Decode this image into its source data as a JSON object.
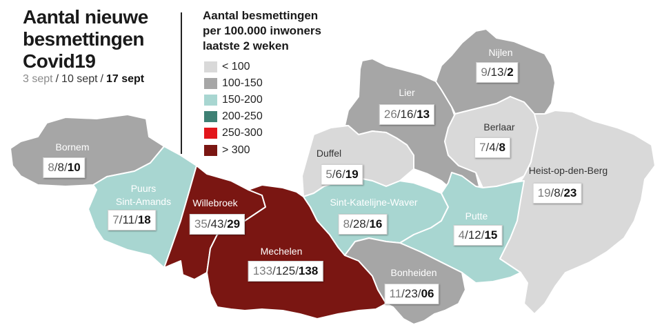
{
  "title": [
    "Aantal nieuwe",
    "besmettingen",
    "Covid19"
  ],
  "dates": [
    "3 sept",
    "10 sept",
    "17 sept"
  ],
  "separator": "/",
  "legend": {
    "title": [
      "Aantal besmettingen",
      "per 100.000 inwoners",
      "laatste 2 weken"
    ],
    "items": [
      {
        "label": "< 100",
        "color": "#d9d9d9"
      },
      {
        "label": "100-150",
        "color": "#a6a6a6"
      },
      {
        "label": "150-200",
        "color": "#a8d6d1"
      },
      {
        "label": "200-250",
        "color": "#3e8074"
      },
      {
        "label": "250-300",
        "color": "#e2161b"
      },
      {
        "label": "> 300",
        "color": "#7a1612"
      }
    ]
  },
  "municipalities": [
    {
      "name_lines": [
        "Bornem"
      ],
      "values": [
        "8",
        "8",
        "10"
      ],
      "fill": "#a6a6a6"
    },
    {
      "name_lines": [
        "Puurs",
        "Sint-Amands"
      ],
      "values": [
        "7",
        "11",
        "18"
      ],
      "fill": "#a8d6d1"
    },
    {
      "name_lines": [
        "Willebroek"
      ],
      "values": [
        "35",
        "43",
        "29"
      ],
      "fill": "#7a1612"
    },
    {
      "name_lines": [
        "Mechelen"
      ],
      "values": [
        "133",
        "125",
        "138"
      ],
      "fill": "#7a1612"
    },
    {
      "name_lines": [
        "Duffel"
      ],
      "values": [
        "5",
        "6",
        "19"
      ],
      "fill": "#d9d9d9"
    },
    {
      "name_lines": [
        "Lier"
      ],
      "values": [
        "26",
        "16",
        "13"
      ],
      "fill": "#a6a6a6"
    },
    {
      "name_lines": [
        "Nijlen"
      ],
      "values": [
        "9",
        "13",
        "2"
      ],
      "fill": "#a6a6a6"
    },
    {
      "name_lines": [
        "Berlaar"
      ],
      "values": [
        "7",
        "4",
        "8"
      ],
      "fill": "#d9d9d9"
    },
    {
      "name_lines": [
        "Heist-op-den-Berg"
      ],
      "values": [
        "19",
        "8",
        "23"
      ],
      "fill": "#d9d9d9"
    },
    {
      "name_lines": [
        "Sint-Katelijne-Waver"
      ],
      "values": [
        "8",
        "28",
        "16"
      ],
      "fill": "#a8d6d1"
    },
    {
      "name_lines": [
        "Putte"
      ],
      "values": [
        "4",
        "12",
        "15"
      ],
      "fill": "#a8d6d1"
    },
    {
      "name_lines": [
        "Bonheiden"
      ],
      "values": [
        "11",
        "23",
        "06"
      ],
      "fill": "#a6a6a6"
    }
  ]
}
